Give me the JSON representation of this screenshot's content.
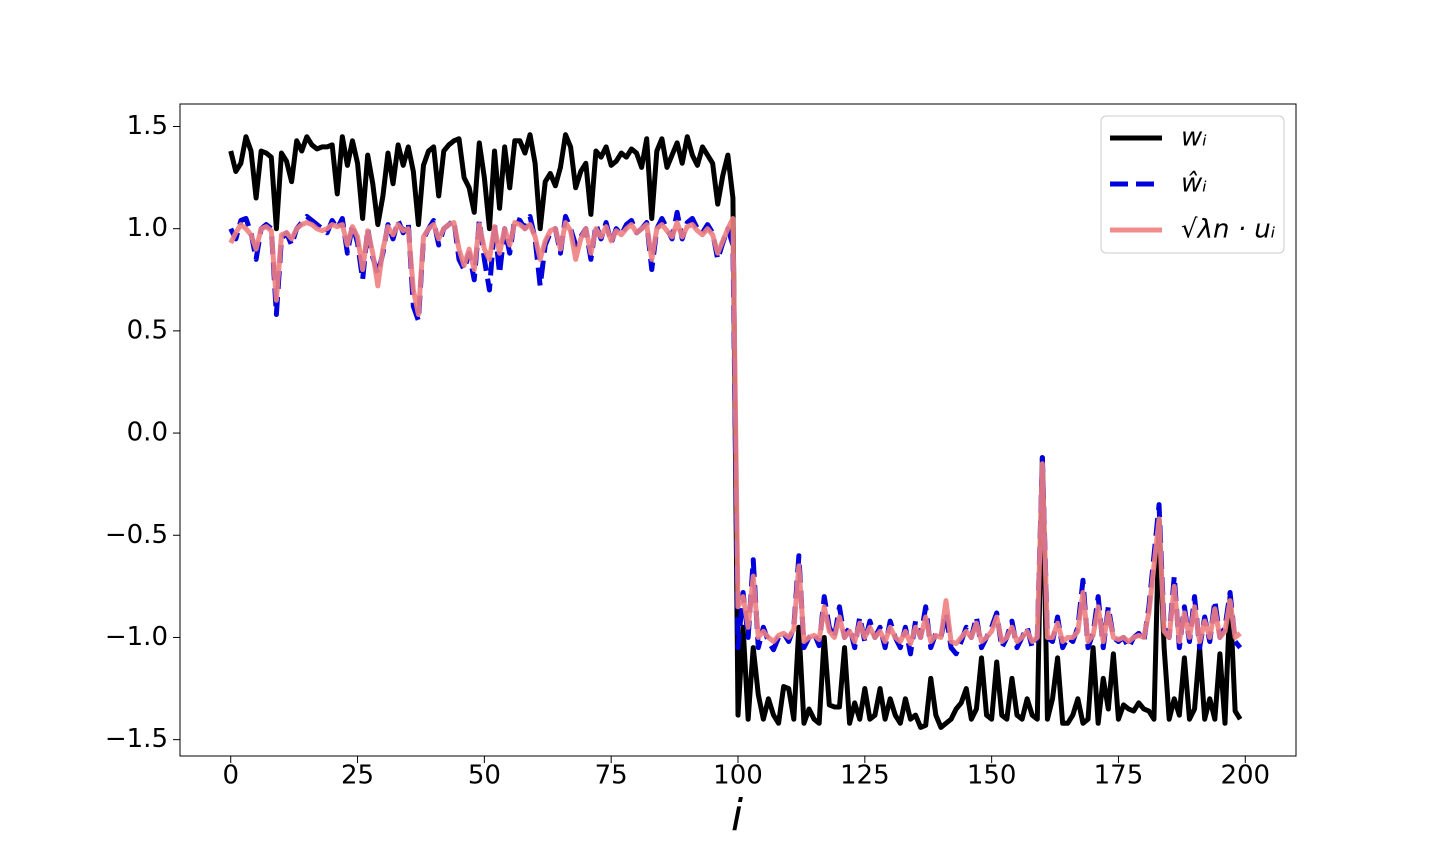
{
  "chart_data": {
    "type": "line",
    "xlabel": "i",
    "x": [
      0,
      1,
      2,
      3,
      4,
      5,
      6,
      7,
      8,
      9,
      10,
      11,
      12,
      13,
      14,
      15,
      16,
      17,
      18,
      19,
      20,
      21,
      22,
      23,
      24,
      25,
      26,
      27,
      28,
      29,
      30,
      31,
      32,
      33,
      34,
      35,
      36,
      37,
      38,
      39,
      40,
      41,
      42,
      43,
      44,
      45,
      46,
      47,
      48,
      49,
      50,
      51,
      52,
      53,
      54,
      55,
      56,
      57,
      58,
      59,
      60,
      61,
      62,
      63,
      64,
      65,
      66,
      67,
      68,
      69,
      70,
      71,
      72,
      73,
      74,
      75,
      76,
      77,
      78,
      79,
      80,
      81,
      82,
      83,
      84,
      85,
      86,
      87,
      88,
      89,
      90,
      91,
      92,
      93,
      94,
      95,
      96,
      97,
      98,
      99,
      100,
      101,
      102,
      103,
      104,
      105,
      106,
      107,
      108,
      109,
      110,
      111,
      112,
      113,
      114,
      115,
      116,
      117,
      118,
      119,
      120,
      121,
      122,
      123,
      124,
      125,
      126,
      127,
      128,
      129,
      130,
      131,
      132,
      133,
      134,
      135,
      136,
      137,
      138,
      139,
      140,
      141,
      142,
      143,
      144,
      145,
      146,
      147,
      148,
      149,
      150,
      151,
      152,
      153,
      154,
      155,
      156,
      157,
      158,
      159,
      160,
      161,
      162,
      163,
      164,
      165,
      166,
      167,
      168,
      169,
      170,
      171,
      172,
      173,
      174,
      175,
      176,
      177,
      178,
      179,
      180,
      181,
      182,
      183,
      184,
      185,
      186,
      187,
      188,
      189,
      190,
      191,
      192,
      193,
      194,
      195,
      196,
      197,
      198,
      199
    ],
    "series": [
      {
        "name": "wᵢ",
        "color": "#000000",
        "dash": false,
        "opacity": 1,
        "values": [
          1.38,
          1.28,
          1.32,
          1.45,
          1.38,
          1.15,
          1.38,
          1.37,
          1.35,
          1.0,
          1.37,
          1.33,
          1.23,
          1.43,
          1.38,
          1.45,
          1.41,
          1.39,
          1.4,
          1.4,
          1.41,
          1.17,
          1.45,
          1.31,
          1.43,
          1.32,
          1.05,
          1.36,
          1.22,
          1.02,
          1.16,
          1.37,
          1.22,
          1.41,
          1.31,
          1.4,
          1.28,
          1.02,
          1.31,
          1.38,
          1.4,
          1.16,
          1.38,
          1.41,
          1.43,
          1.44,
          1.25,
          1.2,
          1.08,
          1.42,
          1.25,
          1.0,
          1.38,
          1.1,
          1.4,
          1.2,
          1.43,
          1.43,
          1.37,
          1.46,
          1.32,
          1.0,
          1.23,
          1.27,
          1.21,
          1.3,
          1.46,
          1.4,
          1.2,
          1.28,
          1.32,
          1.07,
          1.38,
          1.35,
          1.4,
          1.31,
          1.33,
          1.37,
          1.35,
          1.39,
          1.37,
          1.3,
          1.44,
          1.05,
          1.38,
          1.44,
          1.3,
          1.36,
          1.42,
          1.32,
          1.45,
          1.36,
          1.31,
          1.4,
          1.36,
          1.32,
          1.12,
          1.26,
          1.36,
          1.15,
          -1.38,
          -0.95,
          -1.4,
          -1.05,
          -1.28,
          -1.4,
          -1.3,
          -1.38,
          -1.42,
          -1.24,
          -1.25,
          -1.4,
          -0.95,
          -1.42,
          -1.35,
          -1.4,
          -1.42,
          -1.0,
          -1.33,
          -1.34,
          -1.34,
          -1.05,
          -1.42,
          -1.32,
          -1.4,
          -1.25,
          -1.4,
          -1.38,
          -1.25,
          -1.4,
          -1.3,
          -1.38,
          -1.42,
          -1.3,
          -1.4,
          -1.38,
          -1.44,
          -1.43,
          -1.2,
          -1.38,
          -1.44,
          -1.42,
          -1.4,
          -1.35,
          -1.32,
          -1.25,
          -1.4,
          -1.35,
          -1.1,
          -1.38,
          -1.4,
          -1.12,
          -1.38,
          -1.4,
          -1.2,
          -1.38,
          -1.4,
          -1.3,
          -1.38,
          -1.4,
          -0.12,
          -1.4,
          -1.3,
          -1.1,
          -1.42,
          -1.42,
          -1.38,
          -1.3,
          -1.42,
          -1.4,
          -1.05,
          -1.42,
          -1.2,
          -1.35,
          -1.08,
          -1.4,
          -1.33,
          -1.35,
          -1.36,
          -1.32,
          -1.35,
          -1.36,
          -1.4,
          -0.42,
          -1.05,
          -1.4,
          -1.3,
          -1.38,
          -1.1,
          -1.4,
          -1.35,
          -1.05,
          -1.4,
          -1.3,
          -1.4,
          -1.08,
          -1.42,
          -0.8,
          -1.36,
          -1.4
        ]
      },
      {
        "name": "ŵᵢ",
        "color": "#0000dd",
        "dash": true,
        "opacity": 1,
        "values": [
          1.0,
          0.95,
          1.04,
          1.05,
          0.98,
          0.85,
          1.0,
          1.02,
          1.0,
          0.58,
          0.95,
          0.98,
          0.92,
          1.0,
          1.03,
          1.06,
          1.04,
          1.02,
          1.0,
          0.98,
          1.04,
          1.0,
          1.05,
          0.88,
          1.02,
          0.93,
          0.75,
          1.0,
          0.86,
          0.78,
          0.88,
          1.02,
          0.95,
          1.04,
          0.98,
          1.03,
          0.62,
          0.55,
          0.95,
          1.0,
          1.04,
          0.92,
          1.0,
          1.02,
          1.04,
          0.85,
          0.8,
          0.88,
          0.75,
          1.04,
          0.85,
          0.7,
          1.02,
          0.78,
          1.0,
          0.88,
          1.05,
          1.04,
          1.0,
          1.06,
          0.95,
          0.72,
          0.92,
          0.98,
          1.0,
          0.88,
          1.06,
          1.0,
          0.92,
          0.96,
          1.0,
          0.85,
          1.02,
          0.95,
          1.03,
          0.93,
          1.0,
          0.97,
          1.02,
          1.04,
          0.98,
          1.0,
          1.03,
          0.8,
          1.0,
          1.05,
          1.0,
          0.95,
          1.08,
          0.95,
          1.03,
          1.05,
          1.0,
          0.98,
          1.02,
          0.98,
          0.85,
          0.93,
          1.0,
          0.92,
          -1.05,
          -0.78,
          -1.0,
          -0.62,
          -1.05,
          -0.95,
          -1.02,
          -1.06,
          -1.0,
          -0.98,
          -1.02,
          -0.95,
          -0.6,
          -1.05,
          -1.0,
          -0.98,
          -1.04,
          -0.8,
          -0.95,
          -1.0,
          -0.85,
          -1.0,
          -0.95,
          -1.05,
          -0.9,
          -1.02,
          -0.92,
          -1.0,
          -0.95,
          -1.05,
          -0.92,
          -1.0,
          -1.05,
          -0.95,
          -1.08,
          -0.92,
          -1.0,
          -0.85,
          -1.05,
          -0.98,
          -1.0,
          -0.88,
          -1.05,
          -1.08,
          -1.02,
          -0.95,
          -1.0,
          -0.9,
          -1.05,
          -1.0,
          -0.95,
          -0.88,
          -1.05,
          -1.0,
          -0.92,
          -1.05,
          -1.0,
          -0.95,
          -1.05,
          -1.0,
          -0.12,
          -1.0,
          -1.02,
          -0.9,
          -1.05,
          -1.0,
          -1.02,
          -0.95,
          -0.72,
          -1.05,
          -0.98,
          -0.8,
          -1.05,
          -0.85,
          -1.0,
          -1.02,
          -1.0,
          -1.05,
          -1.0,
          -0.98,
          -1.02,
          -0.85,
          -0.6,
          -0.35,
          -0.95,
          -1.0,
          -0.7,
          -1.05,
          -0.85,
          -1.02,
          -0.8,
          -1.05,
          -0.9,
          -1.02,
          -0.82,
          -1.0,
          -0.95,
          -0.78,
          -1.02,
          -1.05
        ]
      },
      {
        "name": "√λn · uᵢ",
        "color": "#f08080",
        "dash": false,
        "opacity": 0.9,
        "values": [
          0.93,
          0.98,
          1.02,
          1.0,
          0.97,
          0.9,
          1.0,
          1.01,
          0.99,
          0.65,
          0.97,
          0.98,
          0.95,
          1.0,
          1.02,
          1.03,
          1.02,
          1.0,
          0.99,
          1.0,
          1.02,
          1.01,
          1.02,
          0.92,
          1.01,
          0.96,
          0.8,
          0.99,
          0.88,
          0.72,
          0.9,
          1.01,
          0.97,
          1.02,
          0.99,
          1.0,
          0.7,
          0.58,
          0.96,
          1.0,
          1.02,
          0.95,
          1.0,
          1.02,
          1.03,
          0.9,
          0.82,
          0.9,
          0.8,
          1.02,
          0.9,
          0.85,
          1.01,
          0.88,
          1.0,
          0.92,
          1.03,
          1.02,
          1.0,
          1.02,
          0.96,
          0.85,
          0.94,
          0.99,
          1.0,
          0.9,
          1.03,
          0.99,
          0.85,
          0.95,
          1.0,
          0.88,
          1.0,
          0.96,
          1.01,
          0.94,
          0.99,
          0.97,
          1.0,
          1.02,
          0.98,
          1.0,
          1.02,
          0.85,
          1.0,
          1.02,
          0.99,
          0.96,
          1.03,
          0.96,
          1.01,
          1.02,
          0.99,
          0.97,
          1.0,
          0.97,
          0.88,
          0.94,
          1.0,
          1.05,
          -0.85,
          -0.8,
          -0.95,
          -0.7,
          -1.0,
          -0.97,
          -1.0,
          -1.02,
          -0.99,
          -0.98,
          -1.0,
          -0.96,
          -0.65,
          -1.02,
          -1.0,
          -0.99,
          -1.01,
          -0.85,
          -0.97,
          -1.0,
          -0.9,
          -1.0,
          -0.97,
          -1.02,
          -0.93,
          -1.0,
          -0.95,
          -1.0,
          -0.97,
          -1.02,
          -0.95,
          -1.0,
          -1.02,
          -0.97,
          -1.03,
          -0.95,
          -1.0,
          -0.9,
          -1.02,
          -0.99,
          -1.0,
          -0.82,
          -1.02,
          -1.03,
          -1.0,
          -0.97,
          -1.0,
          -0.93,
          -1.02,
          -1.0,
          -0.97,
          -0.9,
          -1.02,
          -1.0,
          -0.95,
          -1.02,
          -1.0,
          -0.97,
          -1.02,
          -1.0,
          -0.15,
          -1.0,
          -1.0,
          -0.93,
          -1.02,
          -1.0,
          -1.0,
          -0.97,
          -0.78,
          -1.02,
          -0.99,
          -0.85,
          -1.02,
          -0.88,
          -1.0,
          -1.01,
          -1.0,
          -1.02,
          -1.0,
          -0.99,
          -1.0,
          -0.88,
          -0.65,
          -0.42,
          -0.97,
          -1.0,
          -0.75,
          -1.02,
          -0.88,
          -1.0,
          -0.85,
          -1.02,
          -0.92,
          -1.0,
          -0.86,
          -1.0,
          -0.97,
          -0.82,
          -1.0,
          -0.98
        ]
      }
    ],
    "xlim": [
      -10,
      210
    ],
    "ylim": [
      -1.58,
      1.61
    ],
    "xticks": [
      0,
      25,
      50,
      75,
      100,
      125,
      150,
      175,
      200
    ],
    "yticks": [
      {
        "value": -1.5,
        "label": "−1.5"
      },
      {
        "value": -1,
        "label": "−1.0"
      },
      {
        "value": -0.5,
        "label": "−0.5"
      },
      {
        "value": 0,
        "label": "0.0"
      },
      0.5,
      {
        "value": 1,
        "label": "1.0"
      },
      1.5
    ],
    "legend": "upper right",
    "grid": false
  }
}
